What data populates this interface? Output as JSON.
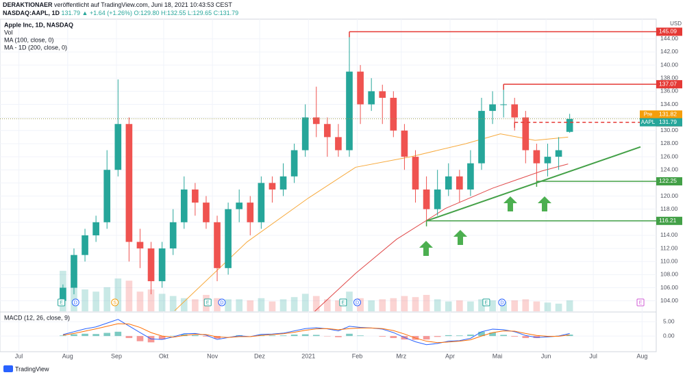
{
  "header": {
    "publisher": "DERAKTIONAER",
    "published": " veröffentlicht auf TradingView.com, Juni 18, 2021 10:43:53 CEST",
    "symbol": "NASDAQ:AAPL, 1D",
    "quote": " 131.79 ▲ +1.64 (+1.26%) O:129.80 H:132.55 L:129.65 C:131.79"
  },
  "chart_data": [
    {
      "type": "candlestick",
      "title": "Apple Inc, 1D, NASDAQ",
      "y_unit": "USD",
      "color_up": "#26a69a",
      "color_down": "#ef5350",
      "grid": true,
      "x": [
        28,
        35,
        42,
        49,
        56,
        63,
        70,
        77,
        84,
        91,
        98,
        105,
        112,
        119,
        126,
        133,
        140,
        147,
        154,
        161,
        168,
        175,
        182,
        189,
        196,
        203,
        210,
        217,
        224,
        231,
        238,
        245,
        252,
        259,
        266,
        273,
        280,
        287,
        294,
        301,
        308,
        315,
        322,
        329,
        336,
        343,
        350
      ],
      "open": [
        104,
        106,
        111,
        114,
        116,
        124,
        131,
        113,
        112,
        107,
        112,
        116,
        121,
        119,
        116,
        109,
        118,
        119,
        116,
        122,
        121,
        123,
        127,
        132,
        131,
        129,
        127,
        139,
        134,
        136,
        135,
        130,
        126,
        121,
        118,
        121,
        123,
        121,
        125,
        133,
        134,
        134,
        132,
        127,
        125,
        126,
        129.8
      ],
      "high": [
        106.5,
        112,
        115,
        117,
        127,
        137.8,
        132,
        115,
        113,
        113,
        118,
        123,
        122,
        120,
        117,
        119,
        121,
        120,
        123,
        123,
        125,
        128,
        134,
        136.7,
        132,
        131,
        145.09,
        140,
        138,
        137,
        136,
        131,
        127,
        123,
        124,
        125,
        124,
        127,
        135,
        136,
        137.07,
        135,
        133,
        128,
        128,
        129,
        132.55
      ],
      "low": [
        103.5,
        105,
        110,
        113,
        115,
        123,
        110,
        109,
        105,
        106,
        111,
        115,
        117,
        115,
        107,
        108,
        116,
        114,
        115,
        119,
        120,
        122,
        126,
        129,
        126,
        126,
        126,
        131,
        133,
        131,
        129,
        124,
        119,
        116.21,
        117,
        120,
        119,
        120,
        124,
        131,
        132,
        130,
        125,
        122.25,
        123,
        124,
        129.65
      ],
      "close": [
        106,
        111,
        114,
        116,
        124,
        131,
        113,
        112,
        107,
        112,
        116,
        121,
        119,
        116,
        109,
        118,
        119,
        116,
        122,
        121,
        123,
        127,
        132,
        131,
        129,
        127,
        139,
        134,
        136,
        135,
        130,
        126,
        121,
        118,
        121,
        123,
        121,
        125,
        133,
        134,
        134,
        132,
        127,
        125,
        126,
        127,
        131.79
      ],
      "volume": {
        "name": "Vol",
        "vlim": [
          0,
          1000
        ],
        "values": [
          370,
          230,
          200,
          180,
          220,
          300,
          280,
          180,
          200,
          160,
          140,
          120,
          110,
          150,
          120,
          110,
          110,
          100,
          120,
          90,
          110,
          130,
          160,
          140,
          110,
          100,
          180,
          120,
          100,
          110,
          120,
          140,
          130,
          150,
          110,
          90,
          100,
          90,
          110,
          100,
          90,
          100,
          110,
          90,
          80,
          70,
          100
        ]
      },
      "lines": [
        {
          "name": "MA (100, close, 0)",
          "color": "#f7a93b",
          "x": [
            99,
            145,
            184,
            214,
            249,
            284,
            306,
            328,
            349
          ],
          "values": [
            102.5,
            113,
            119.7,
            124.4,
            126,
            128,
            129.5,
            128.5,
            129
          ]
        },
        {
          "name": "MA - 1D (200, close, 0)",
          "color": "#e04848",
          "x": [
            188,
            214,
            240,
            271,
            301,
            332,
            349
          ],
          "values": [
            102.4,
            108.2,
            113.4,
            118.1,
            121.2,
            123.8,
            124.9
          ]
        }
      ],
      "levels": [
        {
          "value": 145.09,
          "x_start": 210,
          "color": "#e53935",
          "dashed": false
        },
        {
          "value": 137.07,
          "x_start": 308,
          "color": "#e53935",
          "dashed": false
        },
        {
          "value": 131.26,
          "x_start": 315,
          "color": "#e53935",
          "dashed": true
        },
        {
          "value": 122.25,
          "x_start": 329,
          "color": "#43a047",
          "dashed": false
        },
        {
          "value": 116.21,
          "x_start": 259,
          "color": "#43a047",
          "dashed": false
        }
      ],
      "trendline": {
        "color": "#43a047",
        "x": [
          259,
          395
        ],
        "values": [
          116.21,
          127.5
        ]
      },
      "price_labels": [
        {
          "name": "Pre",
          "value": 131.82,
          "color": "#f59e0b",
          "dotted": false
        },
        {
          "name": "AAPL",
          "value": 131.79,
          "color": "#26a69a",
          "dotted": true
        }
      ],
      "events": [
        {
          "label": "E",
          "x": 27,
          "color": "#26a69a"
        },
        {
          "label": "D",
          "x": 36,
          "color": "#2962ff"
        },
        {
          "label": "S",
          "x": 61,
          "color": "#f59e0b"
        },
        {
          "label": "E",
          "x": 120,
          "color": "#26a69a"
        },
        {
          "label": "D",
          "x": 129,
          "color": "#2962ff"
        },
        {
          "label": "E",
          "x": 206,
          "color": "#26a69a"
        },
        {
          "label": "D",
          "x": 215,
          "color": "#2962ff"
        },
        {
          "label": "E",
          "x": 297,
          "color": "#26a69a"
        },
        {
          "label": "D",
          "x": 307,
          "color": "#2962ff"
        },
        {
          "label": "E",
          "x": 395,
          "color": "#d05ad5"
        }
      ],
      "xlim": [
        -12,
        405
      ],
      "xticks": [
        {
          "value": 0,
          "label": "Jul"
        },
        {
          "value": 31,
          "label": "Aug"
        },
        {
          "value": 62,
          "label": "Sep"
        },
        {
          "value": 92,
          "label": "Okt"
        },
        {
          "value": 123,
          "label": "Nov"
        },
        {
          "value": 153,
          "label": "Dez"
        },
        {
          "value": 184,
          "label": "2021"
        },
        {
          "value": 215,
          "label": "Feb"
        },
        {
          "value": 243,
          "label": "Mrz"
        },
        {
          "value": 274,
          "label": "Apr"
        },
        {
          "value": 304,
          "label": "Mai"
        },
        {
          "value": 335,
          "label": "Jun"
        },
        {
          "value": 365,
          "label": "Jul"
        },
        {
          "value": 396,
          "label": "Aug"
        }
      ],
      "ylim": [
        102.4,
        146.8
      ],
      "yticks": [
        {
          "value": 104,
          "label": "104.00"
        },
        {
          "value": 106,
          "label": "106.00"
        },
        {
          "value": 108,
          "label": "108.00"
        },
        {
          "value": 110,
          "label": "110.00"
        },
        {
          "value": 112,
          "label": "112.00"
        },
        {
          "value": 114,
          "label": "114.00"
        },
        {
          "value": 116,
          "label": "116.00"
        },
        {
          "value": 118,
          "label": "118.00"
        },
        {
          "value": 120,
          "label": "120.00"
        },
        {
          "value": 122,
          "label": "122.00"
        },
        {
          "value": 124,
          "label": "124.00"
        },
        {
          "value": 126,
          "label": "126.00"
        },
        {
          "value": 128,
          "label": "128.00"
        },
        {
          "value": 130,
          "label": "130.00"
        },
        {
          "value": 132,
          "label": "132.00"
        },
        {
          "value": 134,
          "label": "134.00"
        },
        {
          "value": 136,
          "label": "136.00"
        },
        {
          "value": 138,
          "label": "138.00"
        },
        {
          "value": 140,
          "label": "140.00"
        },
        {
          "value": 142,
          "label": "142.00"
        },
        {
          "value": 144,
          "label": "144.00"
        }
      ]
    },
    {
      "type": "macd",
      "title": "MACD (12, 26, close, 9)",
      "x": [
        28,
        35,
        42,
        49,
        56,
        63,
        70,
        77,
        84,
        91,
        98,
        105,
        112,
        119,
        126,
        133,
        140,
        147,
        154,
        161,
        168,
        175,
        182,
        189,
        196,
        203,
        210,
        217,
        224,
        231,
        238,
        245,
        252,
        259,
        266,
        273,
        280,
        287,
        294,
        301,
        308,
        315,
        322,
        329,
        336,
        343,
        350
      ],
      "series": [
        {
          "name": "MACD",
          "color": "#2962ff",
          "values": [
            0.5,
            1.5,
            2.5,
            3.2,
            4.5,
            5.8,
            3.5,
            1.2,
            -1.0,
            -1.2,
            -0.3,
            0.8,
            0.9,
            0.3,
            -1.2,
            -0.5,
            0.1,
            -0.2,
            0.6,
            0.7,
            1.0,
            1.8,
            2.6,
            2.9,
            2.5,
            1.8,
            3.4,
            3.0,
            2.8,
            2.4,
            1.2,
            -0.5,
            -2.0,
            -3.0,
            -2.6,
            -1.8,
            -1.6,
            -0.8,
            1.5,
            2.4,
            2.2,
            1.5,
            0.2,
            -0.5,
            -0.3,
            0.0,
            0.9
          ]
        },
        {
          "name": "Signal",
          "color": "#ff6d00",
          "values": [
            0.3,
            0.9,
            1.7,
            2.5,
            3.4,
            4.3,
            4.2,
            3.0,
            1.2,
            0.0,
            -0.4,
            0.2,
            0.6,
            0.5,
            -0.3,
            -0.5,
            -0.2,
            -0.2,
            0.2,
            0.5,
            0.8,
            1.3,
            2.0,
            2.5,
            2.6,
            2.2,
            2.6,
            2.8,
            2.8,
            2.6,
            1.9,
            0.7,
            -0.7,
            -1.8,
            -2.3,
            -2.1,
            -1.8,
            -1.3,
            0.0,
            1.2,
            1.8,
            1.7,
            0.9,
            0.2,
            -0.1,
            -0.1,
            0.4
          ]
        }
      ],
      "histogram": [
        0.2,
        0.6,
        0.8,
        0.7,
        1.1,
        1.5,
        -0.7,
        -1.8,
        -2.2,
        -1.2,
        0.1,
        0.6,
        0.3,
        -0.2,
        -0.9,
        0.0,
        0.3,
        0.0,
        0.4,
        0.2,
        0.2,
        0.5,
        0.6,
        0.4,
        -0.1,
        -0.4,
        0.8,
        0.2,
        0.0,
        -0.2,
        -0.7,
        -1.2,
        -1.3,
        -1.2,
        -0.3,
        0.3,
        0.2,
        0.5,
        1.5,
        1.2,
        0.4,
        -0.2,
        -0.7,
        -0.7,
        -0.2,
        0.1,
        0.5
      ],
      "ylim": [
        -4.5,
        7.9
      ],
      "yticks": [
        {
          "value": 5,
          "label": "5.00"
        },
        {
          "value": 0,
          "label": "0.00"
        }
      ]
    }
  ],
  "footer": "TradingView"
}
